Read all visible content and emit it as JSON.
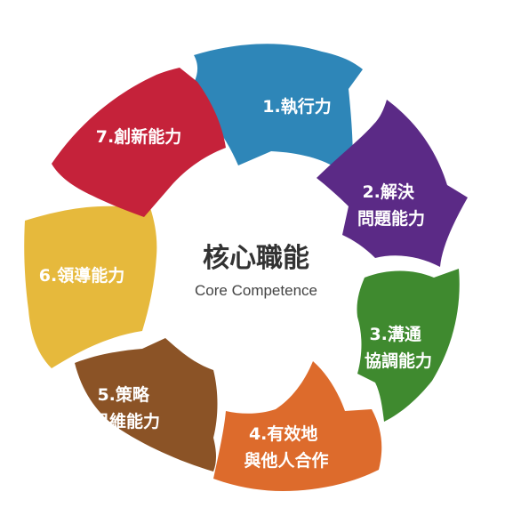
{
  "center": {
    "title": "核心職能",
    "subtitle": "Core Competence"
  },
  "segments": [
    {
      "lines": [
        "1.執行力"
      ],
      "color": "#2e86b8"
    },
    {
      "lines": [
        "2.解決",
        "問題能力"
      ],
      "color": "#5b2a86"
    },
    {
      "lines": [
        "3.溝通",
        "協調能力"
      ],
      "color": "#3f8a2f"
    },
    {
      "lines": [
        "4.有效地",
        "與他人合作"
      ],
      "color": "#dd6b2c"
    },
    {
      "lines": [
        "5.策略",
        "思維能力"
      ],
      "color": "#8b5326"
    },
    {
      "lines": [
        "6.領導能力"
      ],
      "color": "#e6b93c"
    },
    {
      "lines": [
        "7.創新能力"
      ],
      "color": "#c5223a"
    }
  ]
}
